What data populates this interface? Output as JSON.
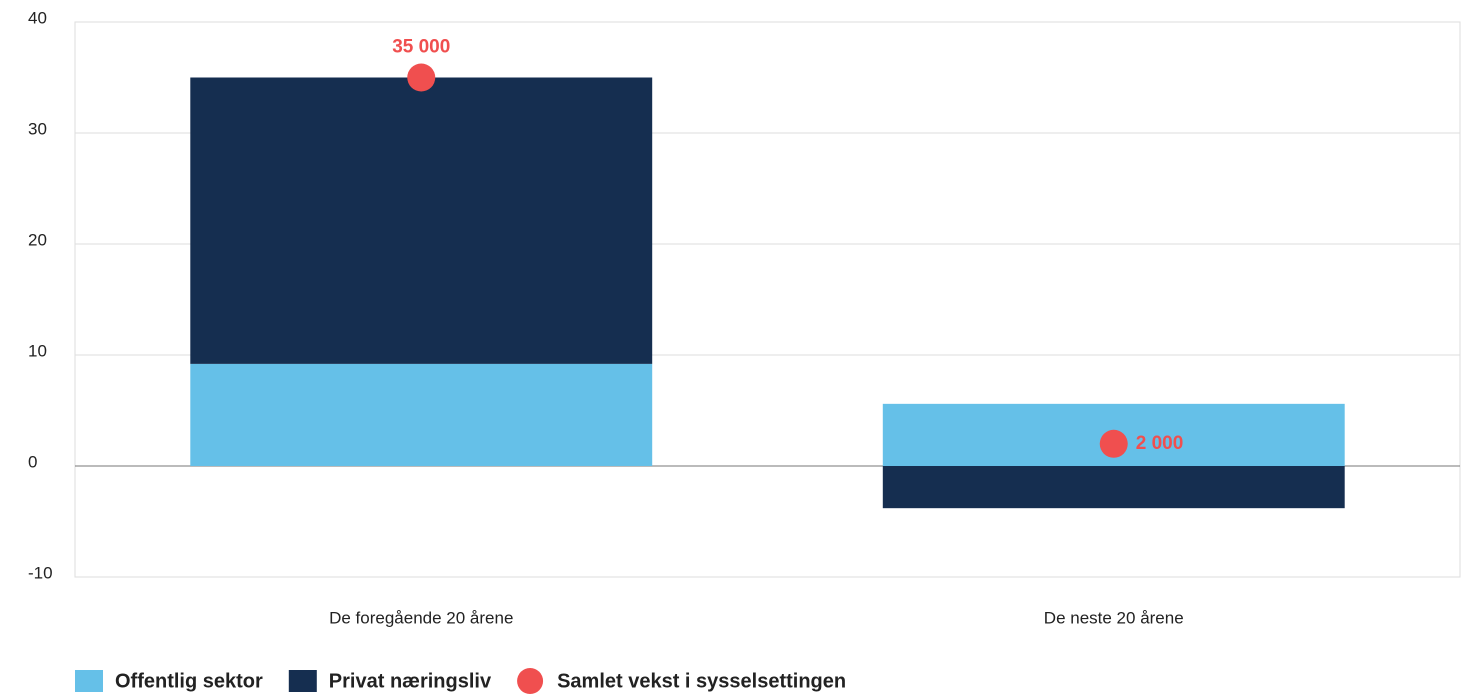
{
  "chart_data": {
    "type": "bar",
    "stacked": true,
    "categories": [
      "De foregående 20 årene",
      "De neste 20 årene"
    ],
    "series": [
      {
        "name": "Offentlig sektor",
        "color": "#65c0e8",
        "values": [
          9.2,
          5.6
        ]
      },
      {
        "name": "Privat næringsliv",
        "color": "#152e50",
        "values": [
          25.8,
          -3.8
        ]
      },
      {
        "name": "Samlet vekst i sysselsettingen",
        "type": "scatter",
        "color": "#f04f4f",
        "values": [
          35,
          2
        ],
        "value_labels": [
          "35 000",
          "2 000"
        ]
      }
    ],
    "ylim": [
      -10,
      40
    ],
    "yticks": [
      -10,
      0,
      10,
      20,
      30,
      40
    ],
    "grid": true,
    "legend": "bottom-left"
  }
}
